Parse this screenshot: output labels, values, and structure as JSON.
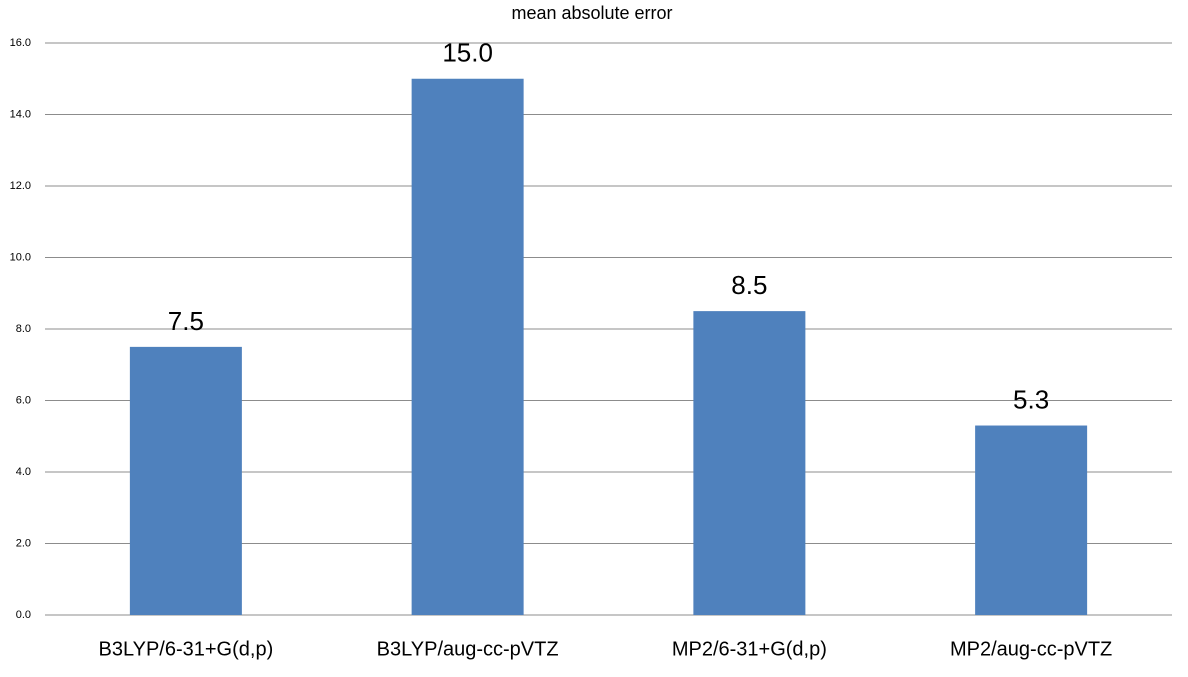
{
  "chart_data": {
    "type": "bar",
    "title": "mean absolute error",
    "categories": [
      "B3LYP/6-31+G(d,p)",
      "B3LYP/aug-cc-pVTZ",
      "MP2/6-31+G(d,p)",
      "MP2/aug-cc-pVTZ"
    ],
    "values": [
      7.5,
      15,
      8.5,
      5.3
    ],
    "value_labels": [
      "7.5",
      "15.0",
      "8.5",
      "5.3"
    ],
    "color": "#4f81bd",
    "ylim": [
      0,
      16
    ],
    "yticks": [
      {
        "value": 0,
        "label": "0.0"
      },
      {
        "value": 2,
        "label": "2.0"
      },
      {
        "value": 4,
        "label": "4.0"
      },
      {
        "value": 6,
        "label": "6.0"
      },
      {
        "value": 8,
        "label": "8.0"
      },
      {
        "value": 10,
        "label": "10.0"
      },
      {
        "value": 12,
        "label": "12.0"
      },
      {
        "value": 14,
        "label": "14.0"
      },
      {
        "value": 16,
        "label": "16.0"
      }
    ],
    "grid": true
  }
}
